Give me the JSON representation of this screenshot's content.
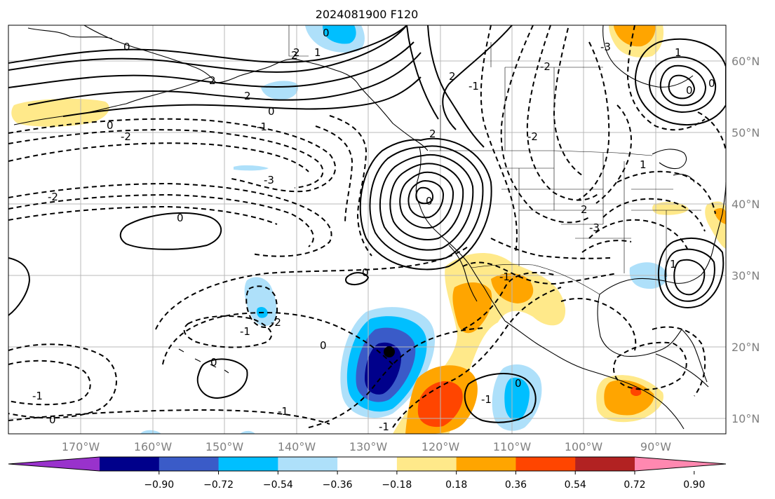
{
  "title": "2024081900 F120",
  "longitude_labels": [
    "170°W",
    "160°W",
    "150°W",
    "140°W",
    "130°W",
    "120°W",
    "110°W",
    "100°W",
    "90°W"
  ],
  "latitude_labels": [
    "60°N",
    "50°N",
    "40°N",
    "30°N",
    "20°N",
    "10°N"
  ],
  "colorbar": {
    "tick_labels": [
      "−0.90",
      "−0.72",
      "−0.54",
      "−0.36",
      "−0.18",
      "0.18",
      "0.36",
      "0.54",
      "0.72",
      "0.90"
    ],
    "colors": [
      "#9932cc",
      "#00008b",
      "#3a5bc8",
      "#00bfff",
      "#aee0fa",
      "#ffffff",
      "#ffe98a",
      "#ffa500",
      "#ff4500",
      "#b22222",
      "#ff88b0"
    ]
  },
  "contour_labels": {
    "north_pacific": [
      "0",
      "2",
      "2",
      "0",
      "-1",
      "2",
      "0",
      "-2",
      "-3",
      "-2",
      "0",
      "-1",
      "-1",
      "-1",
      "0",
      "-2"
    ],
    "north_america": [
      "0",
      "2",
      "1",
      "2",
      "2",
      "0",
      "-3",
      "-1",
      "-2",
      "-2",
      "2",
      "-3",
      "1",
      "0",
      "0",
      "1",
      "1"
    ],
    "tropics": [
      "0",
      "0",
      "-1",
      "0",
      "-1",
      "0",
      "-1"
    ]
  }
}
